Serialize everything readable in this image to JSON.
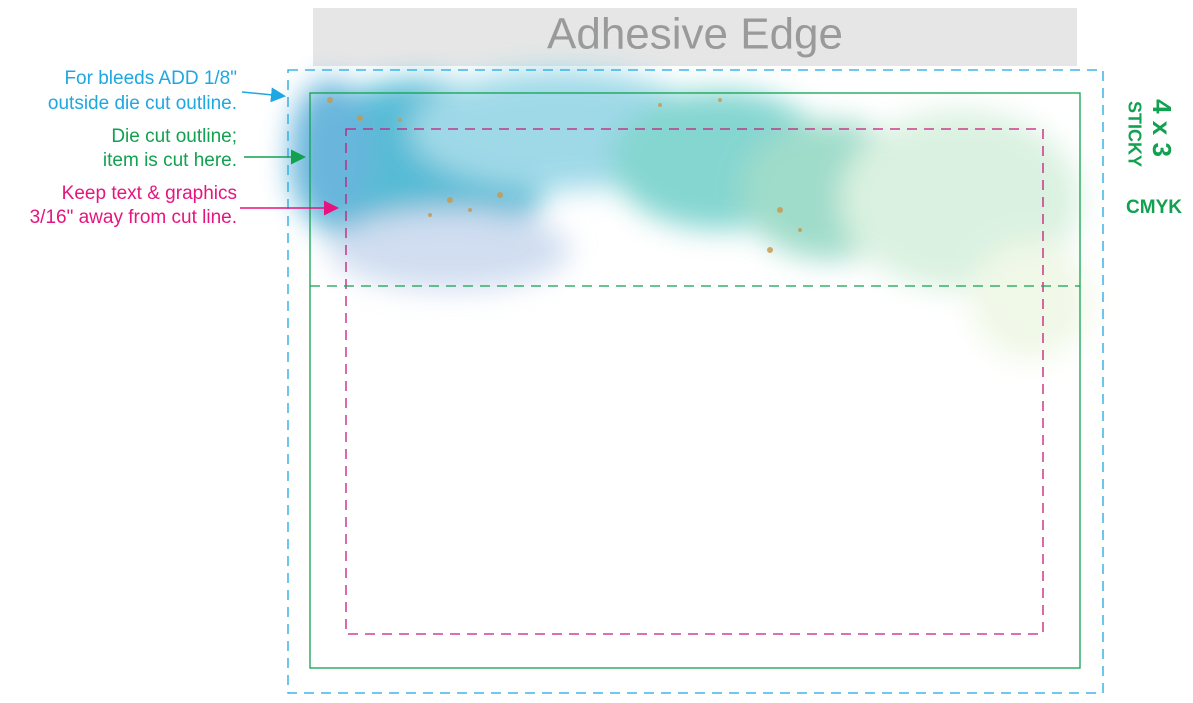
{
  "header": {
    "title": "Adhesive Edge"
  },
  "annotations": [
    {
      "lines": [
        "For bleeds ADD 1/8\"",
        "outside die cut outline."
      ]
    },
    {
      "lines": [
        "Die cut outline;",
        "item is cut here."
      ]
    },
    {
      "lines": [
        "Keep text & graphics",
        "3/16\" away from cut line."
      ]
    }
  ],
  "side_label": {
    "size": "4 x 3",
    "kind": "STICKY",
    "color_mode": "CMYK"
  }
}
